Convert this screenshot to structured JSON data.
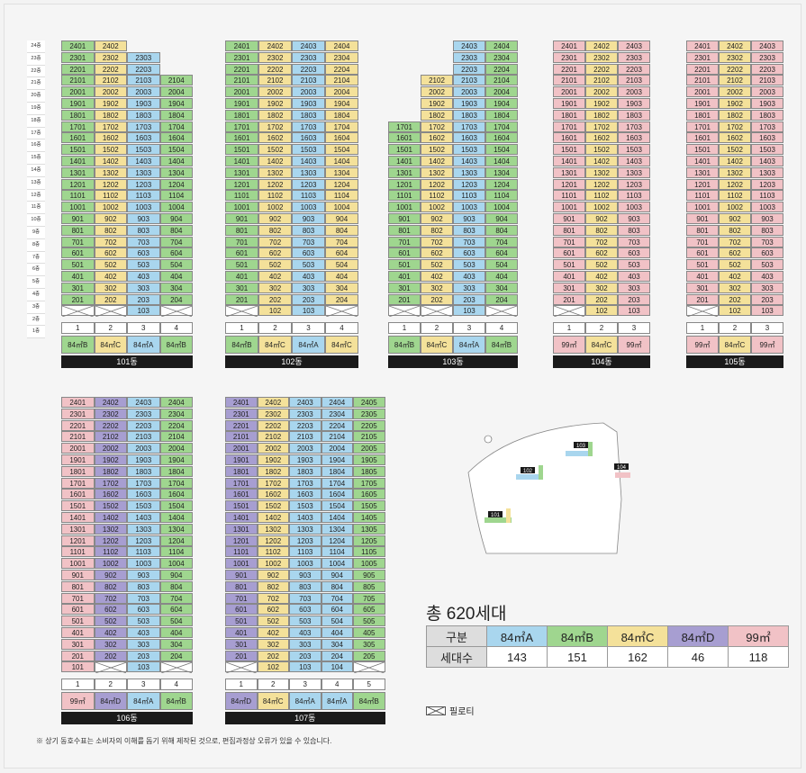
{
  "floors": [
    "24층",
    "23층",
    "22층",
    "21층",
    "20층",
    "19층",
    "18층",
    "17층",
    "16층",
    "15층",
    "14층",
    "13층",
    "12층",
    "11층",
    "10층",
    "9층",
    "8층",
    "7층",
    "6층",
    "5층",
    "4층",
    "3층",
    "2층",
    "1층"
  ],
  "buildings": [
    {
      "name": "101동",
      "units": [
        "1",
        "2",
        "3",
        "4"
      ],
      "types": [
        "84㎡B",
        "84㎡C",
        "84㎡A",
        "84㎡B"
      ],
      "typeKeys": [
        "B",
        "C",
        "A",
        "B"
      ],
      "tops": [
        24,
        24,
        23,
        21
      ],
      "pilotis": [
        1,
        1,
        0,
        1
      ]
    },
    {
      "name": "102동",
      "units": [
        "1",
        "2",
        "3",
        "4"
      ],
      "types": [
        "84㎡B",
        "84㎡C",
        "84㎡A",
        "84㎡C"
      ],
      "typeKeys": [
        "B",
        "C",
        "A",
        "C"
      ],
      "tops": [
        24,
        24,
        24,
        24
      ],
      "pilotis": [
        1,
        0,
        0,
        1
      ]
    },
    {
      "name": "103동",
      "units": [
        "1",
        "2",
        "3",
        "4"
      ],
      "types": [
        "84㎡B",
        "84㎡C",
        "84㎡A",
        "84㎡B"
      ],
      "typeKeys": [
        "B",
        "C",
        "A",
        "B"
      ],
      "tops": [
        17,
        21,
        24,
        24
      ],
      "pilotis": [
        1,
        1,
        0,
        1
      ]
    },
    {
      "name": "104동",
      "units": [
        "1",
        "2",
        "3"
      ],
      "types": [
        "99㎡",
        "84㎡C",
        "99㎡"
      ],
      "typeKeys": [
        "E",
        "C",
        "E"
      ],
      "tops": [
        24,
        24,
        24
      ],
      "pilotis": [
        1,
        0,
        0
      ]
    },
    {
      "name": "105동",
      "units": [
        "1",
        "2",
        "3"
      ],
      "types": [
        "99㎡",
        "84㎡C",
        "99㎡"
      ],
      "typeKeys": [
        "E",
        "C",
        "E"
      ],
      "tops": [
        24,
        24,
        24
      ],
      "pilotis": [
        1,
        0,
        0
      ]
    },
    {
      "name": "106동",
      "units": [
        "1",
        "2",
        "3",
        "4"
      ],
      "types": [
        "99㎡",
        "84㎡D",
        "84㎡A",
        "84㎡B"
      ],
      "typeKeys": [
        "E",
        "D",
        "A",
        "B"
      ],
      "tops": [
        24,
        24,
        24,
        24
      ],
      "pilotis": [
        0,
        1,
        0,
        1
      ]
    },
    {
      "name": "107동",
      "units": [
        "1",
        "2",
        "3",
        "4",
        "5"
      ],
      "types": [
        "84㎡D",
        "84㎡C",
        "84㎡A",
        "84㎡A",
        "84㎡B"
      ],
      "typeKeys": [
        "D",
        "C",
        "A",
        "A",
        "B"
      ],
      "tops": [
        24,
        24,
        24,
        24,
        24
      ],
      "pilotis": [
        1,
        0,
        0,
        0,
        1
      ]
    }
  ],
  "colors": {
    "A": "#a9d6ee",
    "B": "#9fd68f",
    "C": "#f4e19a",
    "D": "#a79ed1",
    "E": "#f1c2c6"
  },
  "site_labels": [
    "101",
    "102",
    "103",
    "104",
    "105",
    "106",
    "107"
  ],
  "summary": {
    "title": "총 620세대",
    "header_label": "구분",
    "count_label": "세대수",
    "types": [
      "84㎡A",
      "84㎡B",
      "84㎡C",
      "84㎡D",
      "99㎡"
    ],
    "counts": [
      "143",
      "151",
      "162",
      "46",
      "118"
    ]
  },
  "legend_label": "필로티",
  "note": "※ 상기 동호수표는 소비자의 이해를 돕기 위해 제작된 것으로, 편집과정상 오류가 있을 수 있습니다."
}
